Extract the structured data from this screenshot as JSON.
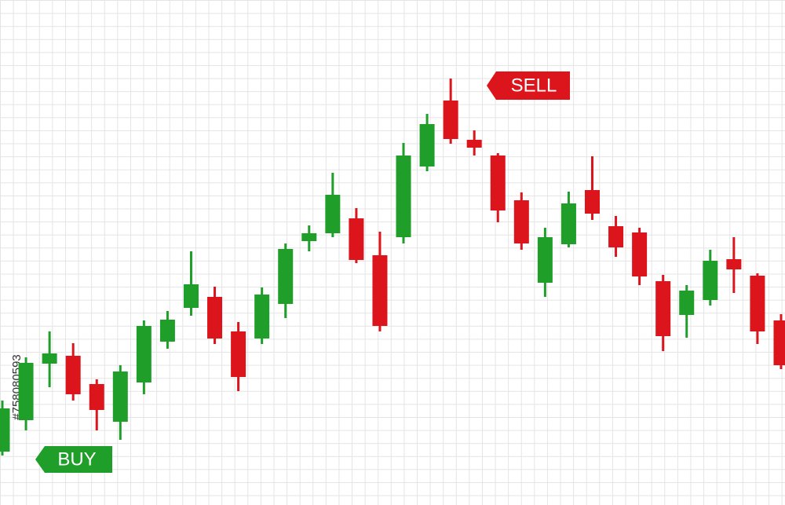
{
  "chart_data": {
    "type": "candlestick",
    "categories": [
      null,
      null,
      null,
      null,
      null,
      null,
      null,
      null,
      null,
      null,
      null,
      null,
      null,
      null,
      null,
      null,
      null,
      null,
      null,
      null,
      null,
      null,
      null,
      null,
      null,
      null,
      null,
      null,
      null,
      null,
      null,
      null,
      null,
      null
    ],
    "open": [
      68,
      108,
      180,
      190,
      154,
      106,
      156,
      208,
      251,
      265,
      221,
      212,
      256,
      336,
      346,
      365,
      318,
      341,
      431,
      515,
      465,
      445,
      388,
      283,
      332,
      401,
      355,
      347,
      285,
      242,
      261,
      313,
      292,
      235
    ],
    "high": [
      133,
      188,
      221,
      206,
      160,
      178,
      235,
      247,
      323,
      278,
      233,
      277,
      333,
      356,
      423,
      378,
      348,
      461,
      498,
      543,
      477,
      448,
      398,
      353,
      399,
      444,
      368,
      353,
      293,
      280,
      325,
      341,
      295,
      243
    ],
    "low": [
      63,
      95,
      150,
      133,
      95,
      83,
      141,
      199,
      241,
      205,
      145,
      205,
      238,
      323,
      341,
      308,
      221,
      333,
      425,
      460,
      445,
      360,
      325,
      265,
      328,
      363,
      316,
      280,
      196,
      213,
      254,
      270,
      205,
      173
    ],
    "close": [
      123,
      181,
      193,
      141,
      121,
      170,
      228,
      236,
      281,
      212,
      163,
      268,
      326,
      346,
      395,
      312,
      228,
      445,
      485,
      466,
      455,
      375,
      333,
      341,
      384,
      371,
      328,
      291,
      215,
      273,
      311,
      300,
      221,
      178
    ],
    "up_color": "#1f9e2a",
    "down_color": "#dc141c",
    "ylim": [
      0,
      643
    ],
    "grid": true,
    "annotations": [
      {
        "text": "SELL",
        "color": "#dc141c"
      },
      {
        "text": "BUY",
        "color": "#1f9e2a"
      }
    ],
    "watermark": "#758080593"
  }
}
